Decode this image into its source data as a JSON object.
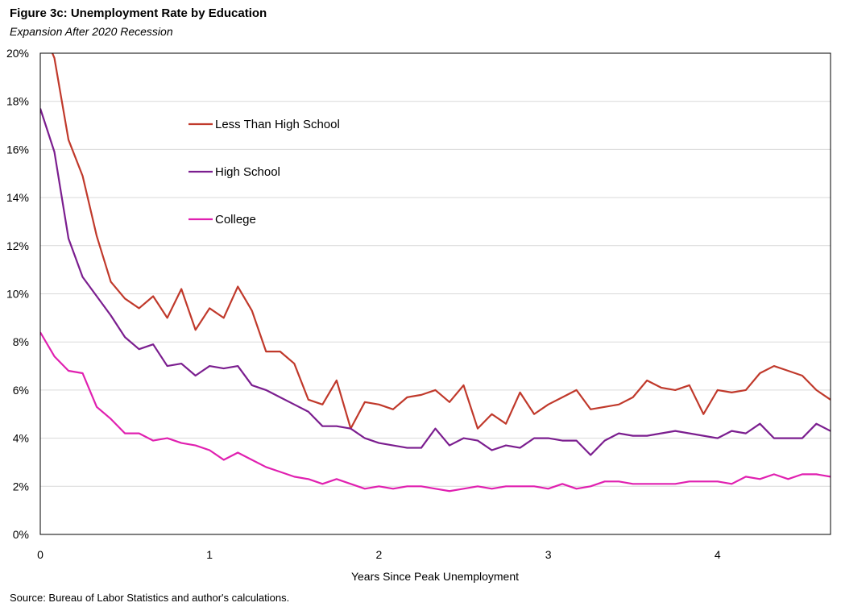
{
  "header": {
    "title": "Figure 3c: Unemployment Rate by Education",
    "subtitle": "Expansion After 2020 Recession"
  },
  "footer": {
    "source": "Source: Bureau of Labor Statistics and author's calculations."
  },
  "chart_data": {
    "type": "line",
    "title": "Figure 3c: Unemployment Rate by Education",
    "subtitle": "Expansion After 2020 Recession",
    "xlabel": "Years Since Peak Unemployment",
    "ylabel": "",
    "xlim": [
      0,
      4.667
    ],
    "ylim": [
      0,
      20
    ],
    "x_ticks": [
      0,
      1,
      2,
      3,
      4
    ],
    "x_tick_labels": [
      "0",
      "1",
      "2",
      "3",
      "4"
    ],
    "y_ticks": [
      0,
      2,
      4,
      6,
      8,
      10,
      12,
      14,
      16,
      18,
      20
    ],
    "y_tick_labels": [
      "0%",
      "2%",
      "4%",
      "6%",
      "8%",
      "10%",
      "12%",
      "14%",
      "16%",
      "18%",
      "20%"
    ],
    "grid": "horizontal",
    "legend_position": "top-left-inside",
    "x_step_months": 1,
    "series": [
      {
        "name": "Less Than High School",
        "color": "#c0392b",
        "values": [
          21.2,
          19.8,
          16.4,
          14.9,
          12.4,
          10.5,
          9.8,
          9.4,
          9.9,
          9.0,
          10.2,
          8.5,
          9.4,
          9.0,
          10.3,
          9.3,
          7.6,
          7.6,
          7.1,
          5.6,
          5.4,
          6.4,
          4.4,
          5.5,
          5.4,
          5.2,
          5.7,
          5.8,
          6.0,
          5.5,
          6.2,
          4.4,
          5.0,
          4.6,
          5.9,
          5.0,
          5.4,
          5.7,
          6.0,
          5.2,
          5.3,
          5.4,
          5.7,
          6.4,
          6.1,
          6.0,
          6.2,
          5.0,
          6.0,
          5.9,
          6.0,
          6.7,
          7.0,
          6.8,
          6.6,
          6.0,
          5.6
        ]
      },
      {
        "name": "High School",
        "color": "#7b1e8f",
        "values": [
          17.7,
          15.9,
          12.3,
          10.7,
          9.9,
          9.1,
          8.2,
          7.7,
          7.9,
          7.0,
          7.1,
          6.6,
          7.0,
          6.9,
          7.0,
          6.2,
          6.0,
          5.7,
          5.4,
          5.1,
          4.5,
          4.5,
          4.4,
          4.0,
          3.8,
          3.7,
          3.6,
          3.6,
          4.4,
          3.7,
          4.0,
          3.9,
          3.5,
          3.7,
          3.6,
          4.0,
          4.0,
          3.9,
          3.9,
          3.3,
          3.9,
          4.2,
          4.1,
          4.1,
          4.2,
          4.3,
          4.2,
          4.1,
          4.0,
          4.3,
          4.2,
          4.6,
          4.0,
          4.0,
          4.0,
          4.6,
          4.3
        ]
      },
      {
        "name": "College",
        "color": "#e020b0",
        "values": [
          8.4,
          7.4,
          6.8,
          6.7,
          5.3,
          4.8,
          4.2,
          4.2,
          3.9,
          4.0,
          3.8,
          3.7,
          3.5,
          3.1,
          3.4,
          3.1,
          2.8,
          2.6,
          2.4,
          2.3,
          2.1,
          2.3,
          2.1,
          1.9,
          2.0,
          1.9,
          2.0,
          2.0,
          1.9,
          1.8,
          1.9,
          2.0,
          1.9,
          2.0,
          2.0,
          2.0,
          1.9,
          2.1,
          1.9,
          2.0,
          2.2,
          2.2,
          2.1,
          2.1,
          2.1,
          2.1,
          2.2,
          2.2,
          2.2,
          2.1,
          2.4,
          2.3,
          2.5,
          2.3,
          2.5,
          2.5,
          2.4
        ]
      }
    ]
  }
}
